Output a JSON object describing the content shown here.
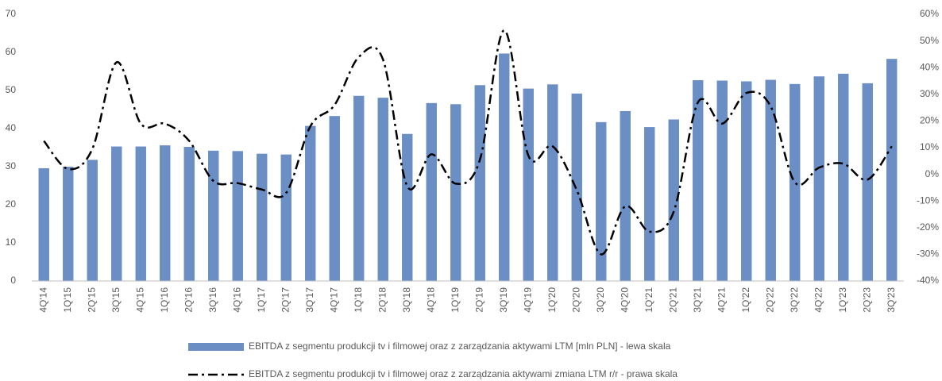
{
  "chart_data": {
    "type": "bar-line",
    "categories": [
      "4Q'14",
      "1Q'15",
      "2Q'15",
      "3Q'15",
      "4Q'15",
      "1Q'16",
      "2Q'16",
      "3Q'16",
      "4Q'16",
      "1Q'17",
      "2Q'17",
      "3Q'17",
      "4Q'17",
      "1Q'18",
      "2Q'18",
      "3Q'18",
      "4Q'18",
      "1Q'19",
      "2Q'19",
      "3Q'19",
      "4Q'19",
      "1Q'20",
      "2Q'20",
      "3Q'20",
      "4Q'20",
      "1Q'21",
      "2Q'21",
      "3Q'21",
      "4Q'21",
      "1Q'22",
      "2Q'22",
      "3Q'22",
      "4Q'22",
      "1Q'23",
      "2Q'23",
      "3Q'23"
    ],
    "series": [
      {
        "name": "EBITDA z segmentu produkcji tv i filmowej oraz z zarządzania aktywami LTM [mln PLN] - lewa skala",
        "type": "bar",
        "color": "#6b8fc4",
        "values": [
          29.6,
          30.0,
          31.8,
          35.3,
          35.3,
          35.6,
          35.2,
          34.2,
          34.1,
          33.4,
          33.2,
          40.7,
          43.3,
          48.6,
          48.1,
          38.6,
          46.7,
          46.4,
          51.4,
          59.7,
          50.5,
          51.6,
          49.2,
          41.7,
          44.6,
          40.4,
          42.4,
          52.7,
          52.6,
          52.4,
          52.8,
          51.7,
          53.7,
          54.4,
          51.9,
          58.3
        ]
      },
      {
        "name": "EBITDA z segmentu produkcji tv i filmowej oraz z zarządzania aktywami zmiana LTM r/r - prawa skala",
        "type": "line",
        "axis": "y2",
        "color": "#000000",
        "values": [
          12.5,
          2,
          9.5,
          42,
          19,
          19,
          12.5,
          -2.5,
          -3.3,
          -5.7,
          -7,
          18,
          26,
          44,
          43,
          -4.5,
          7.5,
          -3.5,
          5.5,
          54,
          7,
          10.5,
          -6,
          -30,
          -12,
          -21.5,
          -14,
          27,
          19,
          30.5,
          25.5,
          -3,
          2.5,
          4,
          -2,
          10.5
        ]
      }
    ],
    "ylim": [
      0,
      70
    ],
    "yticks": [
      0,
      10,
      20,
      30,
      40,
      50,
      60,
      70
    ],
    "y2lim": [
      -40,
      60
    ],
    "y2ticks": [
      {
        "value": -40,
        "label": "-40%"
      },
      {
        "value": -30,
        "label": "-30%"
      },
      {
        "value": -20,
        "label": "-20%"
      },
      {
        "value": -10,
        "label": "-10%"
      },
      {
        "value": 0,
        "label": "0%"
      },
      {
        "value": 10,
        "label": "10%"
      },
      {
        "value": 20,
        "label": "20%"
      },
      {
        "value": 30,
        "label": "30%"
      },
      {
        "value": 40,
        "label": "40%"
      },
      {
        "value": 50,
        "label": "50%"
      },
      {
        "value": 60,
        "label": "60%"
      }
    ],
    "grid": false,
    "legend": "bottom"
  }
}
